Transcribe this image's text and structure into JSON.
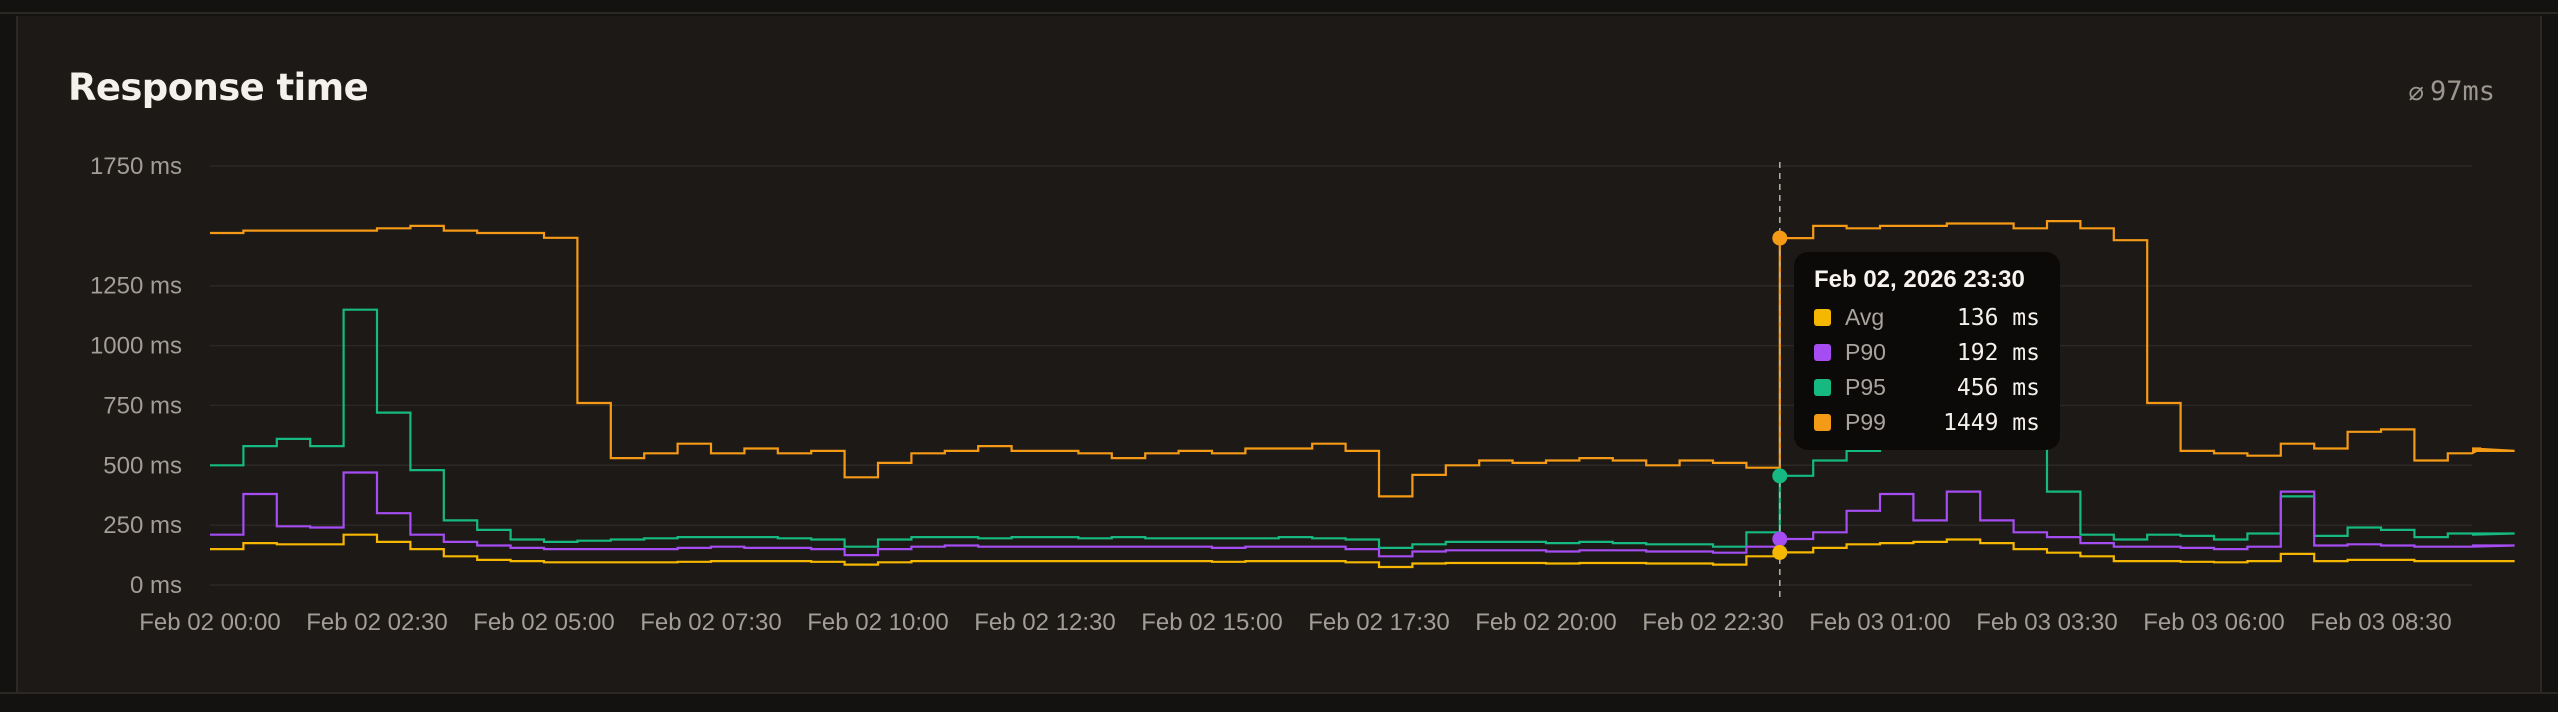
{
  "card": {
    "title": "Response time",
    "avg_icon": "diameter-icon",
    "avg_glyph": "⌀",
    "avg_value": "97ms"
  },
  "tooltip": {
    "title": "Feb 02, 2026 23:30",
    "rows": [
      {
        "name": "Avg",
        "value": "136 ms",
        "color": "#f5b700"
      },
      {
        "name": "P90",
        "value": "192 ms",
        "color": "#a54df2"
      },
      {
        "name": "P95",
        "value": "456 ms",
        "color": "#16b981"
      },
      {
        "name": "P99",
        "value": "1449 ms",
        "color": "#f59a16"
      }
    ]
  },
  "chart_data": {
    "type": "line",
    "step": true,
    "grid": true,
    "ylim": [
      0,
      1750
    ],
    "y_ticks": [
      {
        "value": 0,
        "label": "0 ms"
      },
      {
        "value": 250,
        "label": "250 ms"
      },
      {
        "value": 500,
        "label": "500 ms"
      },
      {
        "value": 750,
        "label": "750 ms"
      },
      {
        "value": 1000,
        "label": "1000 ms"
      },
      {
        "value": 1250,
        "label": "1250 ms"
      },
      {
        "value": 1750,
        "label": "1750 ms"
      }
    ],
    "x_tick_labels": [
      "Feb 02 00:00",
      "Feb 02 02:30",
      "Feb 02 05:00",
      "Feb 02 07:30",
      "Feb 02 10:00",
      "Feb 02 12:30",
      "Feb 02 15:00",
      "Feb 02 17:30",
      "Feb 02 20:00",
      "Feb 02 22:30",
      "Feb 03 01:00",
      "Feb 03 03:30",
      "Feb 03 06:00",
      "Feb 03 08:30"
    ],
    "x_tick_every": 5,
    "x_interval_minutes": 30,
    "x_start": "Feb 02 00:00",
    "hover_index": 47,
    "series": [
      {
        "name": "P99",
        "color": "#f59a16",
        "values": [
          1470,
          1480,
          1480,
          1480,
          1480,
          1490,
          1500,
          1480,
          1470,
          1470,
          1450,
          760,
          530,
          550,
          590,
          550,
          570,
          550,
          560,
          450,
          510,
          550,
          560,
          580,
          560,
          560,
          550,
          530,
          550,
          560,
          550,
          570,
          570,
          590,
          560,
          370,
          460,
          500,
          520,
          510,
          520,
          530,
          520,
          500,
          520,
          510,
          490,
          1449,
          1500,
          1490,
          1500,
          1500,
          1510,
          1510,
          1490,
          1520,
          1490,
          1440,
          760,
          560,
          550,
          540,
          590,
          570,
          640,
          650,
          520,
          550,
          570,
          560
        ]
      },
      {
        "name": "P95",
        "color": "#16b981",
        "values": [
          500,
          580,
          610,
          580,
          1150,
          720,
          480,
          270,
          230,
          190,
          180,
          185,
          190,
          195,
          200,
          200,
          200,
          195,
          190,
          160,
          190,
          200,
          200,
          195,
          200,
          200,
          195,
          200,
          195,
          195,
          195,
          195,
          200,
          195,
          190,
          155,
          170,
          180,
          180,
          180,
          175,
          180,
          175,
          170,
          170,
          160,
          220,
          456,
          520,
          560,
          600,
          700,
          800,
          980,
          600,
          390,
          210,
          190,
          210,
          205,
          190,
          215,
          370,
          205,
          240,
          230,
          200,
          215,
          210,
          215
        ]
      },
      {
        "name": "P90",
        "color": "#a54df2",
        "values": [
          210,
          380,
          245,
          240,
          470,
          300,
          210,
          180,
          165,
          155,
          150,
          150,
          150,
          150,
          155,
          160,
          155,
          155,
          150,
          125,
          150,
          160,
          165,
          160,
          160,
          160,
          160,
          160,
          160,
          160,
          155,
          160,
          160,
          160,
          150,
          120,
          140,
          145,
          145,
          145,
          140,
          145,
          145,
          140,
          140,
          135,
          160,
          192,
          220,
          310,
          380,
          270,
          390,
          270,
          220,
          200,
          175,
          160,
          160,
          155,
          150,
          160,
          390,
          165,
          170,
          165,
          160,
          160,
          160,
          165
        ]
      },
      {
        "name": "Avg",
        "color": "#f5b700",
        "values": [
          150,
          175,
          170,
          170,
          210,
          180,
          150,
          120,
          105,
          100,
          95,
          95,
          95,
          95,
          97,
          100,
          100,
          100,
          97,
          85,
          95,
          100,
          100,
          100,
          100,
          100,
          100,
          100,
          100,
          100,
          97,
          100,
          100,
          100,
          95,
          75,
          90,
          92,
          92,
          92,
          90,
          92,
          92,
          90,
          90,
          85,
          120,
          136,
          155,
          170,
          175,
          180,
          190,
          175,
          150,
          135,
          120,
          100,
          100,
          97,
          95,
          100,
          130,
          100,
          105,
          105,
          100,
          100,
          100,
          100
        ]
      }
    ]
  }
}
